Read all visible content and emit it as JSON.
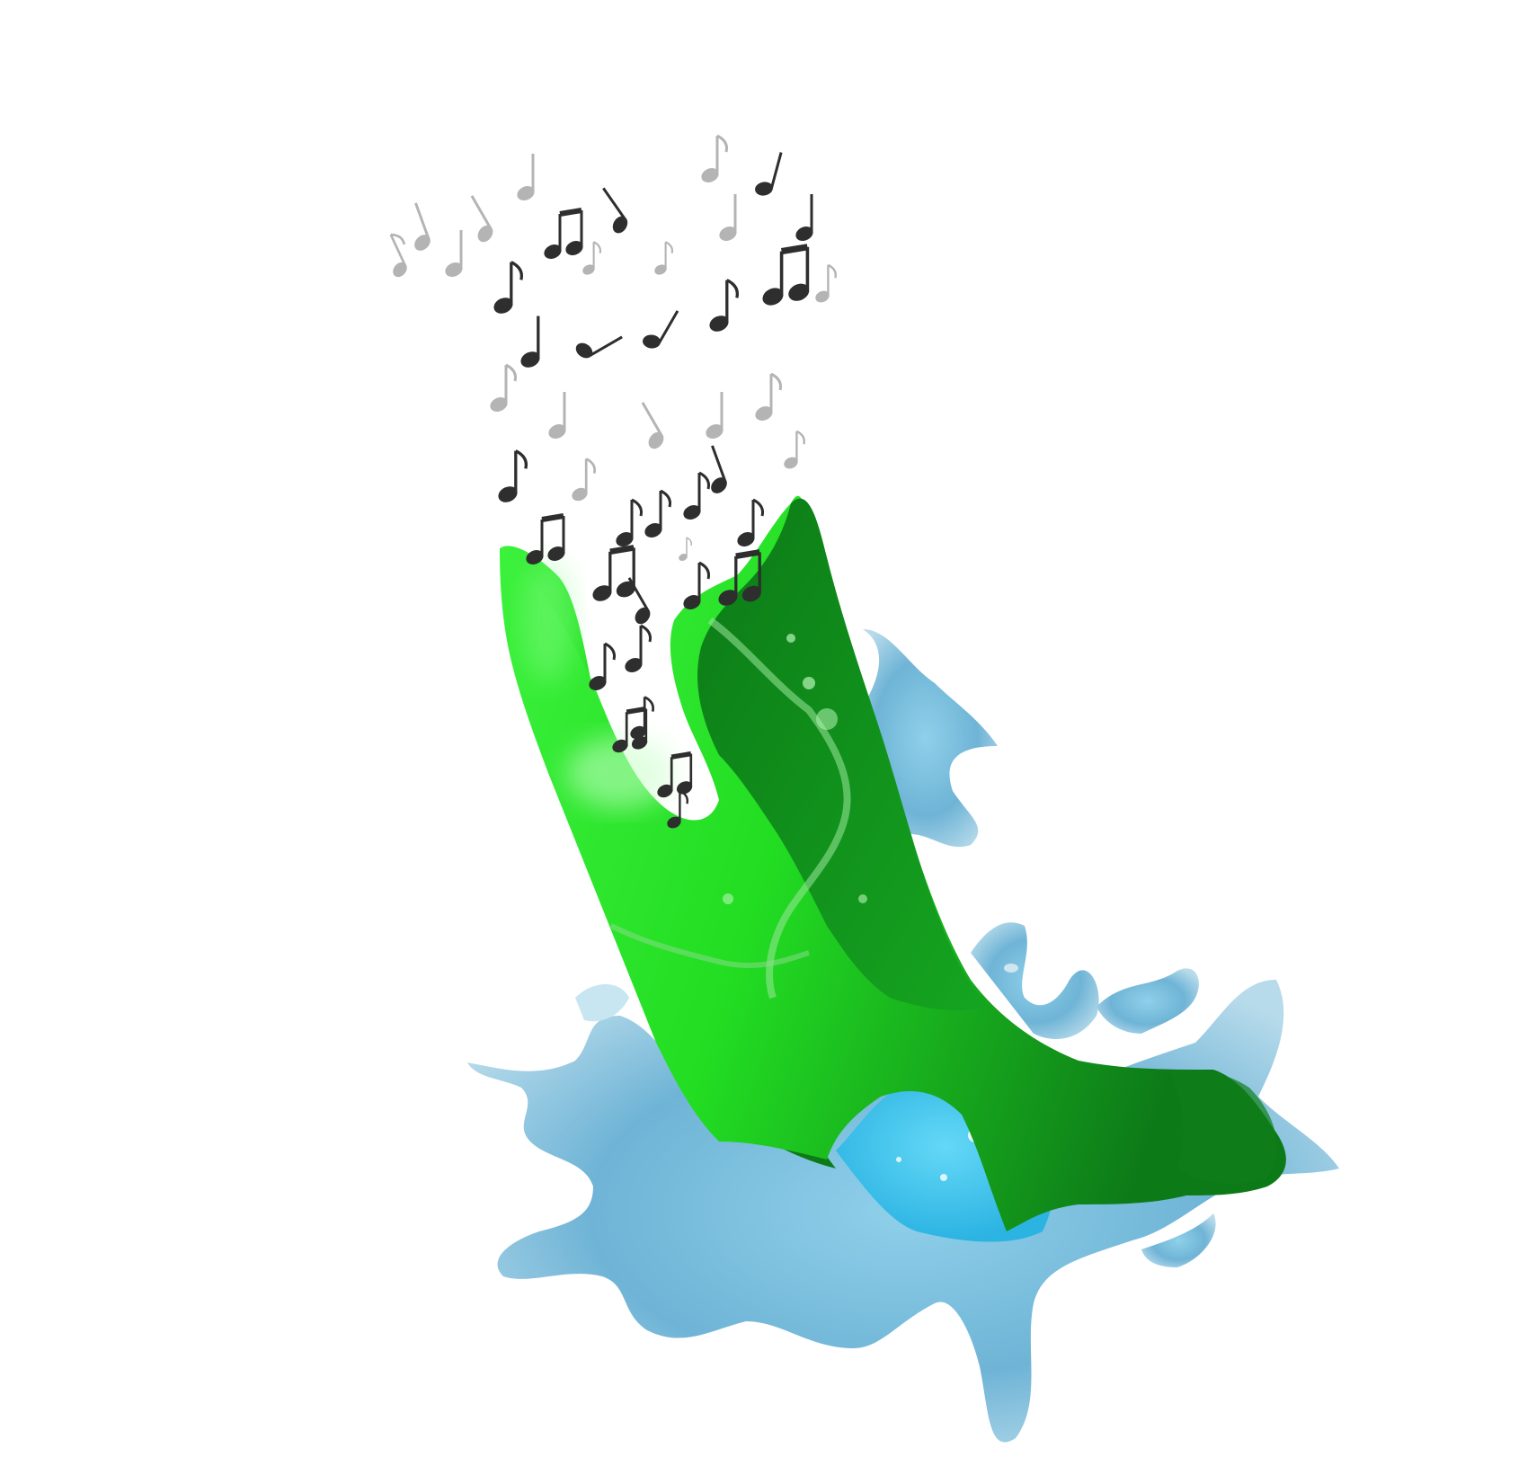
{
  "background_color": "#ffffff",
  "colors": {
    "green_light": "#22ee22",
    "green_mid": "#1ec81e",
    "green_dark": "#0f7f1a",
    "water_light": "#cfe9f5",
    "water_mid": "#7fc2e0",
    "water_bright": "#3fc2ee",
    "water_dark": "#4b8fb8",
    "note_dark": "#2e2e2e",
    "note_light": "#a7a7a7"
  },
  "notes": {
    "dark_count": 36,
    "faded_count": 22
  },
  "icons": [
    "music-note-icon",
    "beamed-notes-icon",
    "green-paint-splash",
    "water-splash"
  ]
}
